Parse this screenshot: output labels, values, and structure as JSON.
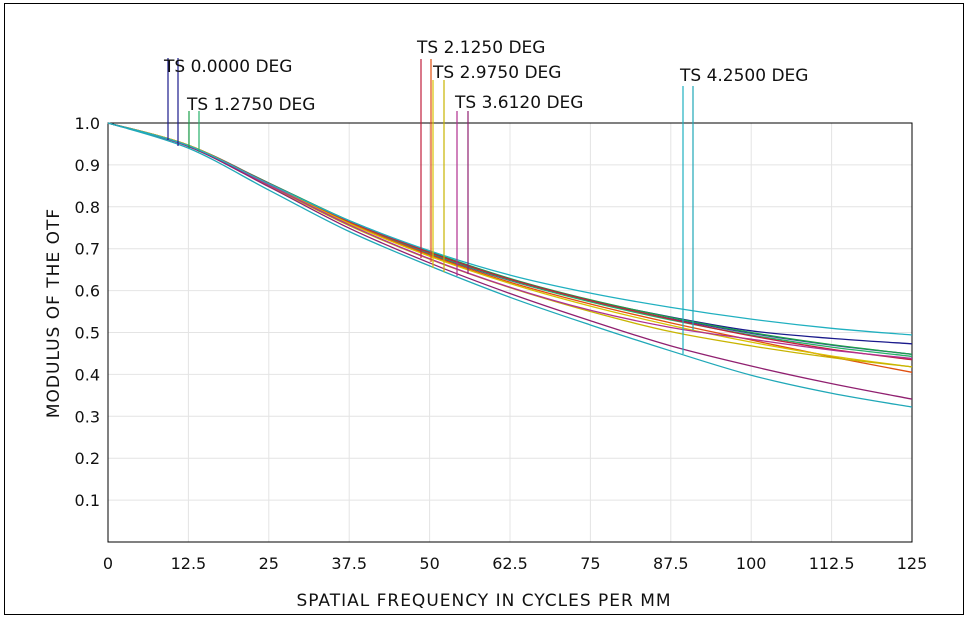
{
  "chart_data": {
    "type": "line",
    "xlabel": "SPATIAL FREQUENCY IN CYCLES PER MM",
    "ylabel": "MODULUS OF THE OTF",
    "xlim": [
      0,
      125
    ],
    "ylim": [
      0,
      1.0
    ],
    "x_ticks": [
      "0",
      "12.5",
      "25",
      "37.5",
      "50",
      "62.5",
      "75",
      "87.5",
      "100",
      "112.5",
      "125"
    ],
    "y_ticks": [
      "0.1",
      "0.2",
      "0.3",
      "0.4",
      "0.5",
      "0.6",
      "0.7",
      "0.8",
      "0.9",
      "1.0"
    ],
    "grid": true,
    "annotations": [
      {
        "text": "TS  0.0000 DEG",
        "color": "#1a1a8c",
        "color2": "#1a1a8c"
      },
      {
        "text": "TS 1.2750 DEG",
        "color": "#1aa04a",
        "color2": "#27b06a"
      },
      {
        "text": "TS 2.1250 DEG",
        "color": "#c0203c",
        "color2": "#e05010"
      },
      {
        "text": "TS 2.9750 DEG",
        "color": "#d8c000",
        "color2": "#c8b400"
      },
      {
        "text": "TS 3.6120 DEG",
        "color": "#b03090",
        "color2": "#902070"
      },
      {
        "text": "TS 4.2500 DEG",
        "color": "#20b0c0",
        "color2": "#20a8b8"
      }
    ],
    "series": [
      {
        "color": "#1a1a8c",
        "x": [
          0,
          12.5,
          25,
          37.5,
          50,
          62.5,
          75,
          87.5,
          100,
          112.5,
          125
        ],
        "values": [
          1.0,
          0.946,
          0.855,
          0.765,
          0.69,
          0.627,
          0.577,
          0.537,
          0.504,
          0.486,
          0.473
        ]
      },
      {
        "color": "#3a3aa0",
        "x": [
          0,
          12.5,
          25,
          37.5,
          50,
          62.5,
          75,
          87.5,
          100,
          112.5,
          125
        ],
        "values": [
          1.0,
          0.945,
          0.853,
          0.762,
          0.687,
          0.624,
          0.574,
          0.533,
          0.498,
          0.47,
          0.448
        ]
      },
      {
        "color": "#1aa04a",
        "x": [
          0,
          12.5,
          25,
          37.5,
          50,
          62.5,
          75,
          87.5,
          100,
          112.5,
          125
        ],
        "values": [
          1.0,
          0.947,
          0.857,
          0.767,
          0.693,
          0.629,
          0.578,
          0.536,
          0.5,
          0.471,
          0.448
        ]
      },
      {
        "color": "#27b06a",
        "x": [
          0,
          12.5,
          25,
          37.5,
          50,
          62.5,
          75,
          87.5,
          100,
          112.5,
          125
        ],
        "values": [
          1.0,
          0.946,
          0.855,
          0.764,
          0.689,
          0.625,
          0.573,
          0.53,
          0.494,
          0.465,
          0.443
        ]
      },
      {
        "color": "#c0203c",
        "x": [
          0,
          12.5,
          25,
          37.5,
          50,
          62.5,
          75,
          87.5,
          100,
          112.5,
          125
        ],
        "values": [
          1.0,
          0.947,
          0.856,
          0.765,
          0.691,
          0.627,
          0.576,
          0.532,
          0.492,
          0.46,
          0.435
        ]
      },
      {
        "color": "#e05010",
        "x": [
          0,
          12.5,
          25,
          37.5,
          50,
          62.5,
          75,
          87.5,
          100,
          112.5,
          125
        ],
        "values": [
          1.0,
          0.947,
          0.854,
          0.762,
          0.685,
          0.62,
          0.568,
          0.523,
          0.482,
          0.442,
          0.405
        ]
      },
      {
        "color": "#d8c000",
        "x": [
          0,
          12.5,
          25,
          37.5,
          50,
          62.5,
          75,
          87.5,
          100,
          112.5,
          125
        ],
        "values": [
          1.0,
          0.947,
          0.853,
          0.76,
          0.682,
          0.617,
          0.563,
          0.517,
          0.477,
          0.444,
          0.418
        ]
      },
      {
        "color": "#c8b400",
        "x": [
          0,
          12.5,
          25,
          37.5,
          50,
          62.5,
          75,
          87.5,
          100,
          112.5,
          125
        ],
        "values": [
          1.0,
          0.945,
          0.85,
          0.755,
          0.675,
          0.607,
          0.55,
          0.502,
          0.468,
          0.44,
          0.418
        ]
      },
      {
        "color": "#b03090",
        "x": [
          0,
          12.5,
          25,
          37.5,
          50,
          62.5,
          75,
          87.5,
          100,
          112.5,
          125
        ],
        "values": [
          1.0,
          0.945,
          0.852,
          0.757,
          0.676,
          0.608,
          0.553,
          0.512,
          0.484,
          0.458,
          0.438
        ]
      },
      {
        "color": "#902070",
        "x": [
          0,
          12.5,
          25,
          37.5,
          50,
          62.5,
          75,
          87.5,
          100,
          112.5,
          125
        ],
        "values": [
          1.0,
          0.944,
          0.848,
          0.749,
          0.666,
          0.593,
          0.528,
          0.468,
          0.42,
          0.378,
          0.341
        ]
      },
      {
        "color": "#20b0c0",
        "x": [
          0,
          12.5,
          25,
          37.5,
          50,
          62.5,
          75,
          87.5,
          100,
          112.5,
          125
        ],
        "values": [
          1.0,
          0.946,
          0.855,
          0.767,
          0.695,
          0.637,
          0.594,
          0.56,
          0.532,
          0.51,
          0.494
        ]
      },
      {
        "color": "#20a8b8",
        "x": [
          0,
          12.5,
          25,
          37.5,
          50,
          62.5,
          75,
          87.5,
          100,
          112.5,
          125
        ],
        "values": [
          1.0,
          0.94,
          0.84,
          0.741,
          0.659,
          0.584,
          0.518,
          0.456,
          0.398,
          0.355,
          0.322
        ]
      }
    ]
  }
}
